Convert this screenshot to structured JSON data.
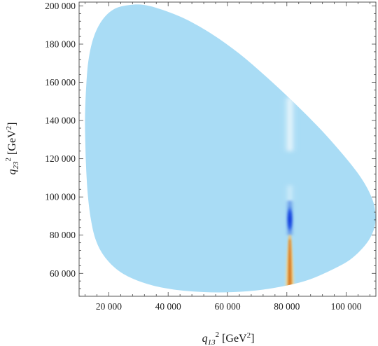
{
  "chart_data": {
    "type": "heatmap",
    "title": "",
    "xlabel": {
      "var": "q",
      "sub": "13",
      "sup": "2",
      "unit_pre": "[GeV",
      "unit_sup": "2",
      "unit_post": "]"
    },
    "ylabel": {
      "var": "q",
      "sub": "23",
      "sup": "2",
      "unit_pre": "[GeV",
      "unit_sup": "2",
      "unit_post": "]"
    },
    "xlim": [
      10000,
      110000
    ],
    "ylim": [
      48000,
      202000
    ],
    "x_ticks": [
      {
        "value": 20000,
        "label": "20 000"
      },
      {
        "value": 40000,
        "label": "40 000"
      },
      {
        "value": 60000,
        "label": "60 000"
      },
      {
        "value": 80000,
        "label": "80 000"
      },
      {
        "value": 100000,
        "label": "100 000"
      }
    ],
    "y_ticks": [
      {
        "value": 60000,
        "label": "60 000"
      },
      {
        "value": 80000,
        "label": "80 000"
      },
      {
        "value": 100000,
        "label": "100 000"
      },
      {
        "value": 120000,
        "label": "120 000"
      },
      {
        "value": 140000,
        "label": "140 000"
      },
      {
        "value": 160000,
        "label": "160 000"
      },
      {
        "value": 180000,
        "label": "180 000"
      },
      {
        "value": 200000,
        "label": "200 000"
      }
    ],
    "minor_ticks_per_major": 4,
    "region_boundary": [
      [
        27000,
        200500
      ],
      [
        22000,
        198500
      ],
      [
        18000,
        193000
      ],
      [
        15000,
        184000
      ],
      [
        13200,
        172000
      ],
      [
        12400,
        158000
      ],
      [
        12000,
        142000
      ],
      [
        12100,
        128000
      ],
      [
        12400,
        114000
      ],
      [
        13000,
        100000
      ],
      [
        14000,
        88000
      ],
      [
        15500,
        78000
      ],
      [
        18000,
        70000
      ],
      [
        22000,
        63000
      ],
      [
        27000,
        58000
      ],
      [
        34000,
        54000
      ],
      [
        42000,
        51500
      ],
      [
        52000,
        50200
      ],
      [
        62000,
        50200
      ],
      [
        72000,
        51500
      ],
      [
        81000,
        54000
      ],
      [
        88000,
        57000
      ],
      [
        96000,
        62500
      ],
      [
        102000,
        68000
      ],
      [
        107000,
        76000
      ],
      [
        109500,
        84000
      ],
      [
        109800,
        92000
      ],
      [
        108500,
        100000
      ],
      [
        105000,
        110000
      ],
      [
        99000,
        122000
      ],
      [
        91000,
        136000
      ],
      [
        82000,
        150000
      ],
      [
        73000,
        163000
      ],
      [
        64000,
        175000
      ],
      [
        55000,
        185000
      ],
      [
        46000,
        193000
      ],
      [
        38000,
        198000
      ],
      [
        32000,
        200500
      ]
    ],
    "base_color": "#a9dcf5",
    "resonance_x": 81000,
    "features": [
      {
        "y_range": [
          124000,
          152000
        ],
        "color": "#f5fbfd",
        "peak_y": 136000
      },
      {
        "y_range": [
          97000,
          106000
        ],
        "color": "#c4e7f7",
        "peak_y": 101000
      },
      {
        "y_range": [
          80000,
          98000
        ],
        "color": "#1746e0",
        "peak_y": 89000
      },
      {
        "y_range": [
          53500,
          80000
        ],
        "color": "#d9700a",
        "peak_y": 62000
      }
    ]
  }
}
